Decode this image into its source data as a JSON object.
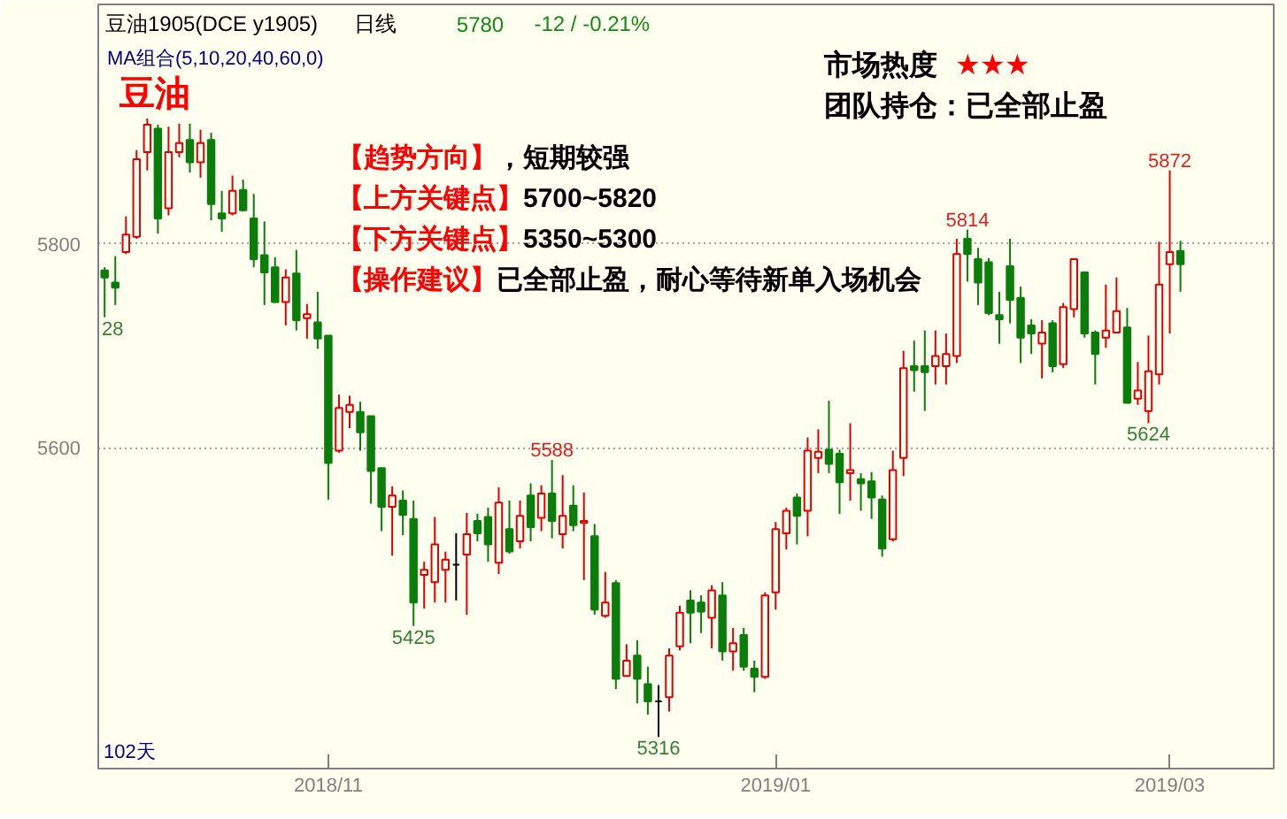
{
  "chart_data": {
    "type": "candlestick",
    "title": "豆油1905(DCE y1905)",
    "categories": [
      null,
      null,
      null,
      null,
      null,
      null,
      null,
      null,
      null,
      null,
      null,
      null,
      null,
      null,
      null,
      null,
      null,
      null,
      null,
      null,
      null,
      "2018/11",
      null,
      null,
      null,
      null,
      null,
      null,
      null,
      null,
      null,
      null,
      null,
      null,
      null,
      null,
      null,
      null,
      null,
      null,
      null,
      null,
      null,
      null,
      null,
      null,
      null,
      null,
      null,
      null,
      null,
      null,
      null,
      null,
      null,
      null,
      null,
      null,
      null,
      null,
      null,
      null,
      null,
      "2019/01",
      null,
      null,
      null,
      null,
      null,
      null,
      null,
      null,
      null,
      null,
      null,
      null,
      null,
      null,
      null,
      null,
      null,
      null,
      null,
      null,
      null,
      null,
      null,
      null,
      null,
      null,
      null,
      null,
      null,
      null,
      null,
      null,
      null,
      null,
      null,
      null,
      "2019/03",
      null
    ],
    "ohlc": [
      [
        5774,
        5777,
        5728,
        5767
      ],
      [
        5762,
        5788,
        5740,
        5757
      ],
      [
        5792,
        5827,
        5790,
        5809
      ],
      [
        5807,
        5892,
        5805,
        5883
      ],
      [
        5890,
        5923,
        5872,
        5917
      ],
      [
        5913,
        5917,
        5810,
        5825
      ],
      [
        5835,
        5915,
        5828,
        5890
      ],
      [
        5890,
        5918,
        5885,
        5899
      ],
      [
        5902,
        5918,
        5870,
        5880
      ],
      [
        5880,
        5912,
        5865,
        5899
      ],
      [
        5902,
        5909,
        5823,
        5839
      ],
      [
        5830,
        5852,
        5812,
        5825
      ],
      [
        5830,
        5867,
        5828,
        5852
      ],
      [
        5853,
        5863,
        5832,
        5833
      ],
      [
        5825,
        5849,
        5777,
        5785
      ],
      [
        5789,
        5822,
        5740,
        5772
      ],
      [
        5777,
        5787,
        5742,
        5743
      ],
      [
        5743,
        5775,
        5720,
        5767
      ],
      [
        5771,
        5794,
        5715,
        5725
      ],
      [
        5727,
        5741,
        5707,
        5731
      ],
      [
        5723,
        5753,
        5697,
        5707
      ],
      [
        5710,
        5710,
        5549,
        5585
      ],
      [
        5597,
        5652,
        5595,
        5639
      ],
      [
        5635,
        5651,
        5619,
        5642
      ],
      [
        5635,
        5645,
        5597,
        5615
      ],
      [
        5631,
        5631,
        5545,
        5577
      ],
      [
        5580,
        5580,
        5518,
        5542
      ],
      [
        5542,
        5562,
        5494,
        5553
      ],
      [
        5548,
        5558,
        5514,
        5534
      ],
      [
        5530,
        5548,
        5425,
        5448
      ],
      [
        5475,
        5488,
        5442,
        5480
      ],
      [
        5468,
        5532,
        5448,
        5505
      ],
      [
        5480,
        5498,
        5448,
        5490
      ],
      [
        5485,
        5516,
        5450,
        5485
      ],
      [
        5495,
        5536,
        5436,
        5515
      ],
      [
        5528,
        5535,
        5508,
        5516
      ],
      [
        5532,
        5541,
        5488,
        5505
      ],
      [
        5487,
        5561,
        5476,
        5546
      ],
      [
        5520,
        5548,
        5496,
        5498
      ],
      [
        5508,
        5548,
        5501,
        5533
      ],
      [
        5553,
        5565,
        5508,
        5522
      ],
      [
        5531,
        5563,
        5518,
        5555
      ],
      [
        5555,
        5588,
        5511,
        5528
      ],
      [
        5515,
        5573,
        5501,
        5533
      ],
      [
        5543,
        5563,
        5518,
        5524
      ],
      [
        5526,
        5556,
        5470,
        5528
      ],
      [
        5513,
        5525,
        5436,
        5441
      ],
      [
        5435,
        5478,
        5433,
        5448
      ],
      [
        5467,
        5470,
        5363,
        5373
      ],
      [
        5376,
        5407,
        5375,
        5391
      ],
      [
        5396,
        5411,
        5349,
        5373
      ],
      [
        5368,
        5385,
        5338,
        5351
      ],
      [
        5351,
        5367,
        5316,
        5351
      ],
      [
        5355,
        5403,
        5341,
        5396
      ],
      [
        5405,
        5445,
        5401,
        5438
      ],
      [
        5450,
        5460,
        5408,
        5438
      ],
      [
        5448,
        5455,
        5418,
        5439
      ],
      [
        5433,
        5465,
        5403,
        5460
      ],
      [
        5455,
        5468,
        5391,
        5400
      ],
      [
        5400,
        5423,
        5381,
        5408
      ],
      [
        5416,
        5423,
        5381,
        5385
      ],
      [
        5383,
        5391,
        5360,
        5375
      ],
      [
        5375,
        5458,
        5373,
        5455
      ],
      [
        5458,
        5527,
        5441,
        5520
      ],
      [
        5516,
        5541,
        5500,
        5538
      ],
      [
        5551,
        5555,
        5505,
        5533
      ],
      [
        5538,
        5610,
        5513,
        5597
      ],
      [
        5590,
        5618,
        5575,
        5596
      ],
      [
        5598,
        5646,
        5575,
        5584
      ],
      [
        5594,
        5598,
        5535,
        5566
      ],
      [
        5575,
        5624,
        5548,
        5578
      ],
      [
        5569,
        5575,
        5538,
        5565
      ],
      [
        5567,
        5576,
        5530,
        5551
      ],
      [
        5549,
        5553,
        5493,
        5501
      ],
      [
        5510,
        5597,
        5508,
        5578
      ],
      [
        5590,
        5695,
        5572,
        5678
      ],
      [
        5680,
        5705,
        5655,
        5676
      ],
      [
        5680,
        5715,
        5636,
        5674
      ],
      [
        5680,
        5715,
        5662,
        5690
      ],
      [
        5680,
        5712,
        5662,
        5692
      ],
      [
        5690,
        5805,
        5683,
        5790
      ],
      [
        5805,
        5814,
        5763,
        5790
      ],
      [
        5785,
        5796,
        5740,
        5762
      ],
      [
        5782,
        5786,
        5730,
        5732
      ],
      [
        5730,
        5753,
        5702,
        5726
      ],
      [
        5778,
        5805,
        5722,
        5745
      ],
      [
        5747,
        5758,
        5683,
        5708
      ],
      [
        5720,
        5726,
        5692,
        5712
      ],
      [
        5702,
        5725,
        5668,
        5713
      ],
      [
        5722,
        5725,
        5674,
        5680
      ],
      [
        5682,
        5742,
        5678,
        5738
      ],
      [
        5736,
        5786,
        5728,
        5785
      ],
      [
        5772,
        5773,
        5708,
        5712
      ],
      [
        5713,
        5715,
        5662,
        5692
      ],
      [
        5708,
        5760,
        5698,
        5715
      ],
      [
        5713,
        5767,
        5712,
        5734
      ],
      [
        5718,
        5737,
        5644,
        5644
      ],
      [
        5648,
        5684,
        5642,
        5656
      ],
      [
        5636,
        5710,
        5624,
        5675
      ],
      [
        5672,
        5802,
        5662,
        5760
      ],
      [
        5780,
        5872,
        5712,
        5792
      ],
      [
        5793,
        5803,
        5753,
        5780
      ]
    ],
    "colors": [
      "#0a7d0a",
      "#0a7d0a",
      "#e00000",
      "#e00000",
      "#e00000",
      "#0a7d0a",
      "#e00000",
      "#e00000",
      "#0a7d0a",
      "#e00000",
      "#0a7d0a",
      "#0a7d0a",
      "#e00000",
      "#0a7d0a",
      "#0a7d0a",
      "#0a7d0a",
      "#0a7d0a",
      "#e00000",
      "#0a7d0a",
      "#e00000",
      "#0a7d0a",
      "#0a7d0a",
      "#e00000",
      "#e00000",
      "#0a7d0a",
      "#0a7d0a",
      "#0a7d0a",
      "#e00000",
      "#0a7d0a",
      "#0a7d0a",
      "#e00000",
      "#e00000",
      "#e00000",
      "#000000",
      "#e00000",
      "#0a7d0a",
      "#0a7d0a",
      "#e00000",
      "#0a7d0a",
      "#e00000",
      "#0a7d0a",
      "#e00000",
      "#0a7d0a",
      "#e00000",
      "#0a7d0a",
      "#e00000",
      "#0a7d0a",
      "#e00000",
      "#0a7d0a",
      "#e00000",
      "#0a7d0a",
      "#0a7d0a",
      "#000000",
      "#e00000",
      "#e00000",
      "#0a7d0a",
      "#0a7d0a",
      "#e00000",
      "#0a7d0a",
      "#e00000",
      "#0a7d0a",
      "#0a7d0a",
      "#e00000",
      "#e00000",
      "#e00000",
      "#0a7d0a",
      "#e00000",
      "#e00000",
      "#0a7d0a",
      "#0a7d0a",
      "#e00000",
      "#0a7d0a",
      "#0a7d0a",
      "#0a7d0a",
      "#e00000",
      "#e00000",
      "#0a7d0a",
      "#0a7d0a",
      "#e00000",
      "#e00000",
      "#e00000",
      "#0a7d0a",
      "#0a7d0a",
      "#0a7d0a",
      "#0a7d0a",
      "#0a7d0a",
      "#0a7d0a",
      "#0a7d0a",
      "#e00000",
      "#0a7d0a",
      "#e00000",
      "#e00000",
      "#0a7d0a",
      "#0a7d0a",
      "#e00000",
      "#e00000",
      "#0a7d0a",
      "#e00000",
      "#e00000",
      "#e00000",
      "#e00000",
      "#0a7d0a"
    ],
    "ylim": [
      5285,
      6035
    ],
    "yticks": [
      5600,
      5800
    ],
    "grid": "y",
    "annotations": [
      "日线",
      "5780",
      "-12 / -0.21%",
      "MA组合(5,10,20,40,60,0)",
      "豆油",
      "市场热度",
      "★★★",
      "团队持仓：已全部止盈",
      "【趋势方向】",
      "，短期较强",
      "【上方关键点】",
      "5700~5820",
      "【下方关键点】",
      "5350~5300",
      "【操作建议】",
      "已全部止盈，耐心等待新单入场机会",
      "102天",
      {
        "text": "5588",
        "y": 5588
      },
      {
        "text": "5814",
        "y": 5814
      },
      {
        "text": "5872",
        "y": 5872
      },
      {
        "text": "28",
        "y": 5728
      },
      {
        "text": "5425",
        "y": 5425
      },
      {
        "text": "5316",
        "y": 5316
      },
      {
        "text": "5624",
        "y": 5624
      }
    ]
  }
}
